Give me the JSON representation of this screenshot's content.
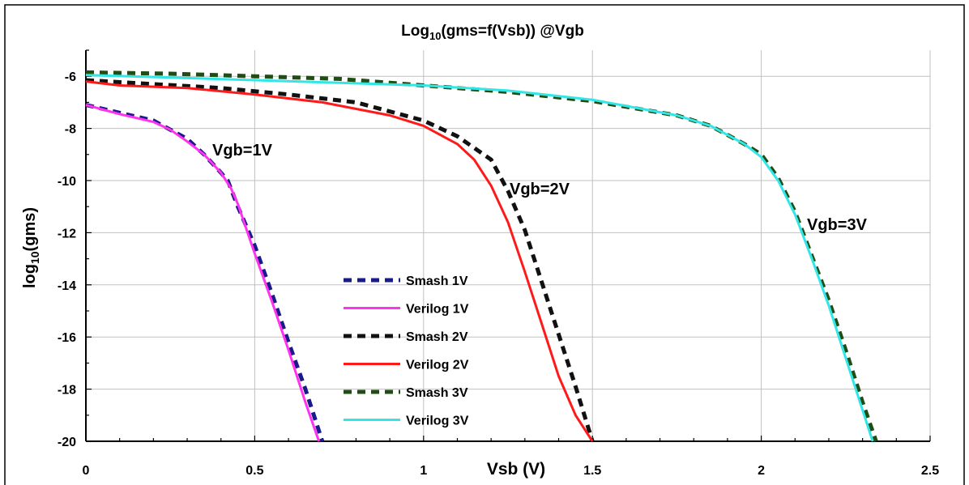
{
  "chart_data": {
    "type": "line",
    "title": {
      "prefix": "Log",
      "subscript": "10",
      "suffix": "(gms=f(Vsb)) @Vgb"
    },
    "xlabel": "Vsb (V)",
    "ylabel": {
      "prefix": "log",
      "subscript": "10",
      "suffix": "(gms)"
    },
    "xlim": [
      0,
      2.5
    ],
    "ylim": [
      -20,
      -5
    ],
    "x_ticks": [
      0,
      0.5,
      1,
      1.5,
      2,
      2.5
    ],
    "x_tick_labels": [
      "0",
      "0.5",
      "1",
      "1.5",
      "2",
      "2.5"
    ],
    "y_ticks": [
      -6,
      -8,
      -10,
      -12,
      -14,
      -16,
      -18,
      -20
    ],
    "y_tick_labels": [
      "-6",
      "-8",
      "-10",
      "-12",
      "-14",
      "-16",
      "-18",
      "-20"
    ],
    "grid": true,
    "legend_position": "center",
    "annotations": [
      "Vgb=1V",
      "Vgb=2V",
      "Vgb=3V"
    ],
    "series": [
      {
        "name": "Smash 1V",
        "color": "#1a1a8c",
        "style": "dashed",
        "x": [
          0,
          0.1,
          0.2,
          0.3,
          0.35,
          0.4,
          0.42,
          0.45,
          0.5,
          0.55,
          0.6,
          0.65,
          0.7
        ],
        "y": [
          -7.1,
          -7.4,
          -7.7,
          -8.4,
          -9.0,
          -9.7,
          -10.0,
          -11.0,
          -12.5,
          -14.3,
          -16.2,
          -18.0,
          -20.0
        ]
      },
      {
        "name": "Verilog 1V",
        "color": "#ff33ee",
        "style": "solid",
        "x": [
          0,
          0.1,
          0.2,
          0.25,
          0.3,
          0.35,
          0.4,
          0.43,
          0.45,
          0.5,
          0.55,
          0.6,
          0.65,
          0.69
        ],
        "y": [
          -7.1,
          -7.45,
          -7.75,
          -8.05,
          -8.5,
          -9.0,
          -9.7,
          -10.3,
          -10.9,
          -12.8,
          -14.6,
          -16.5,
          -18.5,
          -20.0
        ]
      },
      {
        "name": "Smash 2V",
        "color": "#111111",
        "style": "dashed",
        "x": [
          0,
          0.2,
          0.4,
          0.6,
          0.8,
          1.0,
          1.1,
          1.2,
          1.25,
          1.3,
          1.35,
          1.4,
          1.45,
          1.5
        ],
        "y": [
          -6.15,
          -6.3,
          -6.45,
          -6.7,
          -7.0,
          -7.7,
          -8.3,
          -9.2,
          -10.4,
          -11.9,
          -13.9,
          -15.9,
          -17.9,
          -20.0
        ]
      },
      {
        "name": "Verilog 2V",
        "color": "#ff1a1a",
        "style": "solid",
        "x": [
          0,
          0.1,
          0.3,
          0.5,
          0.7,
          0.9,
          1.0,
          1.1,
          1.15,
          1.2,
          1.25,
          1.3,
          1.35,
          1.4,
          1.45,
          1.5
        ],
        "y": [
          -6.2,
          -6.35,
          -6.45,
          -6.7,
          -7.0,
          -7.5,
          -7.9,
          -8.6,
          -9.2,
          -10.2,
          -11.6,
          -13.5,
          -15.5,
          -17.5,
          -19.0,
          -20.0
        ]
      },
      {
        "name": "Smash 3V",
        "color": "#1f4d14",
        "style": "dashed",
        "x": [
          0,
          0.25,
          0.5,
          0.75,
          1.0,
          1.25,
          1.5,
          1.75,
          1.85,
          1.95,
          2.0,
          2.05,
          2.1,
          2.15,
          2.2,
          2.25,
          2.3,
          2.34
        ],
        "y": [
          -5.85,
          -5.9,
          -6.0,
          -6.1,
          -6.35,
          -6.6,
          -6.95,
          -7.5,
          -7.9,
          -8.6,
          -9.0,
          -9.9,
          -11.2,
          -12.9,
          -14.6,
          -16.5,
          -18.5,
          -20.0
        ]
      },
      {
        "name": "Verilog 3V",
        "color": "#33e6e6",
        "style": "solid",
        "x": [
          0,
          0.25,
          0.5,
          0.75,
          1.0,
          1.25,
          1.5,
          1.75,
          1.85,
          1.95,
          2.0,
          2.05,
          2.1,
          2.15,
          2.2,
          2.25,
          2.3,
          2.33
        ],
        "y": [
          -5.95,
          -6.05,
          -6.15,
          -6.25,
          -6.35,
          -6.55,
          -6.9,
          -7.5,
          -7.9,
          -8.6,
          -9.1,
          -10.0,
          -11.3,
          -13.0,
          -14.8,
          -16.8,
          -18.8,
          -20.0
        ]
      }
    ]
  }
}
